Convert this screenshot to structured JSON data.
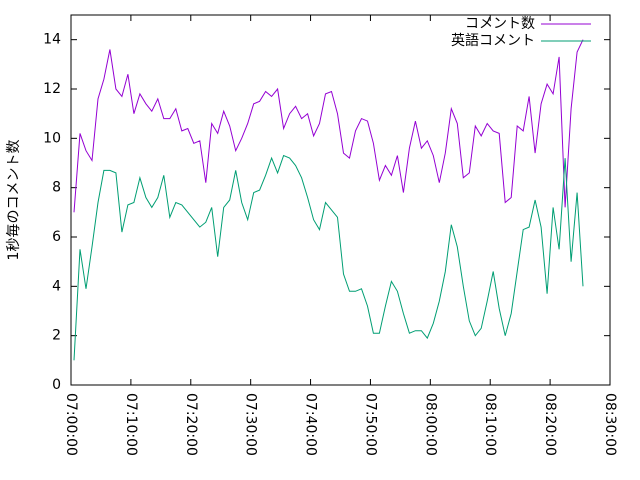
{
  "chart_data": {
    "type": "line",
    "ylabel": "1秒毎のコメント数",
    "x": [
      "07:00:30",
      "07:01:30",
      "07:02:30",
      "07:03:30",
      "07:04:30",
      "07:05:30",
      "07:06:30",
      "07:07:30",
      "07:08:30",
      "07:09:30",
      "07:10:30",
      "07:11:30",
      "07:12:30",
      "07:13:30",
      "07:14:30",
      "07:15:30",
      "07:16:30",
      "07:17:30",
      "07:18:30",
      "07:19:30",
      "07:20:30",
      "07:21:30",
      "07:22:30",
      "07:23:30",
      "07:24:30",
      "07:25:30",
      "07:26:30",
      "07:27:30",
      "07:28:30",
      "07:29:30",
      "07:30:30",
      "07:31:30",
      "07:32:30",
      "07:33:30",
      "07:34:30",
      "07:35:30",
      "07:36:30",
      "07:37:30",
      "07:38:30",
      "07:39:30",
      "07:40:30",
      "07:41:30",
      "07:42:30",
      "07:43:30",
      "07:44:30",
      "07:45:30",
      "07:46:30",
      "07:47:30",
      "07:48:30",
      "07:49:30",
      "07:50:30",
      "07:51:30",
      "07:52:30",
      "07:53:30",
      "07:54:30",
      "07:55:30",
      "07:56:30",
      "07:57:30",
      "07:58:30",
      "07:59:30",
      "08:00:30",
      "08:01:30",
      "08:02:30",
      "08:03:30",
      "08:04:30",
      "08:05:30",
      "08:06:30",
      "08:07:30",
      "08:08:30",
      "08:09:30",
      "08:10:30",
      "08:11:30",
      "08:12:30",
      "08:13:30",
      "08:14:30",
      "08:15:30",
      "08:16:30",
      "08:17:30",
      "08:18:30",
      "08:19:30",
      "08:20:30",
      "08:21:30",
      "08:22:30",
      "08:23:30",
      "08:24:30",
      "08:25:30"
    ],
    "series": [
      {
        "name": "コメント数",
        "color": "#9400d3",
        "values": [
          7.0,
          10.2,
          9.5,
          9.1,
          11.6,
          12.4,
          13.6,
          12.0,
          11.7,
          12.6,
          11.0,
          11.8,
          11.4,
          11.1,
          11.6,
          10.8,
          10.8,
          11.2,
          10.3,
          10.4,
          9.8,
          9.9,
          8.2,
          10.6,
          10.2,
          11.1,
          10.5,
          9.5,
          10.0,
          10.6,
          11.4,
          11.5,
          11.9,
          11.7,
          12.0,
          10.4,
          11.0,
          11.3,
          10.8,
          11.0,
          10.1,
          10.6,
          11.8,
          11.9,
          11.0,
          9.4,
          9.2,
          10.3,
          10.8,
          10.7,
          9.8,
          8.3,
          8.9,
          8.5,
          9.3,
          7.8,
          9.6,
          10.7,
          9.6,
          9.9,
          9.3,
          8.2,
          9.4,
          11.2,
          10.6,
          8.4,
          8.6,
          10.5,
          10.1,
          10.6,
          10.3,
          10.2,
          7.4,
          7.6,
          10.5,
          10.3,
          11.7,
          9.4,
          11.4,
          12.2,
          11.8,
          13.3,
          7.2,
          11.2,
          13.5,
          14.0
        ]
      },
      {
        "name": "英語コメント",
        "color": "#009e73",
        "values": [
          1.0,
          5.5,
          3.9,
          5.6,
          7.4,
          8.7,
          8.7,
          8.6,
          6.2,
          7.3,
          7.4,
          8.4,
          7.6,
          7.2,
          7.6,
          8.5,
          6.8,
          7.4,
          7.3,
          7.0,
          6.7,
          6.4,
          6.6,
          7.2,
          5.2,
          7.2,
          7.5,
          8.7,
          7.4,
          6.7,
          7.8,
          7.9,
          8.5,
          9.2,
          8.6,
          9.3,
          9.2,
          8.9,
          8.4,
          7.6,
          6.7,
          6.3,
          7.4,
          7.1,
          6.8,
          4.5,
          3.8,
          3.8,
          3.9,
          3.2,
          2.1,
          2.1,
          3.2,
          4.2,
          3.8,
          2.9,
          2.1,
          2.2,
          2.2,
          1.9,
          2.5,
          3.4,
          4.6,
          6.5,
          5.6,
          4.0,
          2.6,
          2.0,
          2.3,
          3.4,
          4.6,
          3.1,
          2.0,
          2.9,
          4.6,
          6.3,
          6.4,
          7.5,
          6.4,
          3.7,
          7.2,
          5.5,
          9.2,
          5.0,
          7.8,
          4.0
        ]
      }
    ],
    "xlim": [
      "07:00:00",
      "08:30:00"
    ],
    "xticks": [
      "07:00:00",
      "07:10:00",
      "07:20:00",
      "07:30:00",
      "07:40:00",
      "07:50:00",
      "08:00:00",
      "08:10:00",
      "08:20:00",
      "08:30:00"
    ],
    "ylim": [
      0,
      15
    ],
    "yticks": [
      0,
      2,
      4,
      6,
      8,
      10,
      12,
      14
    ],
    "legend": "top-right"
  }
}
